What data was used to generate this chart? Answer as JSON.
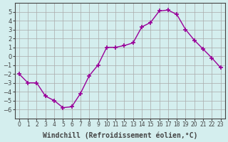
{
  "hours": [
    0,
    1,
    2,
    3,
    4,
    5,
    6,
    7,
    8,
    9,
    10,
    11,
    12,
    13,
    14,
    15,
    16,
    17,
    18,
    19,
    20,
    21,
    22,
    23
  ],
  "values": [
    -2,
    -3,
    -3,
    -4.5,
    -5,
    -5.8,
    -5.7,
    -4.2,
    -2.2,
    -1,
    1,
    1,
    1.2,
    1.5,
    3.3,
    3.8,
    5.1,
    5.2,
    4.7,
    3.0,
    1.8,
    0.8,
    -0.2,
    -1.3
  ],
  "line_color": "#990099",
  "marker": "+",
  "bg_color": "#d4eeee",
  "grid_color": "#aaaaaa",
  "xlabel": "Windchill (Refroidissement éolien,°C)",
  "ylim": [
    -7,
    6
  ],
  "yticks": [
    -6,
    -5,
    -4,
    -3,
    -2,
    -1,
    0,
    1,
    2,
    3,
    4,
    5
  ],
  "axis_color": "#444444",
  "label_fontsize": 7,
  "tick_fontsize": 6
}
